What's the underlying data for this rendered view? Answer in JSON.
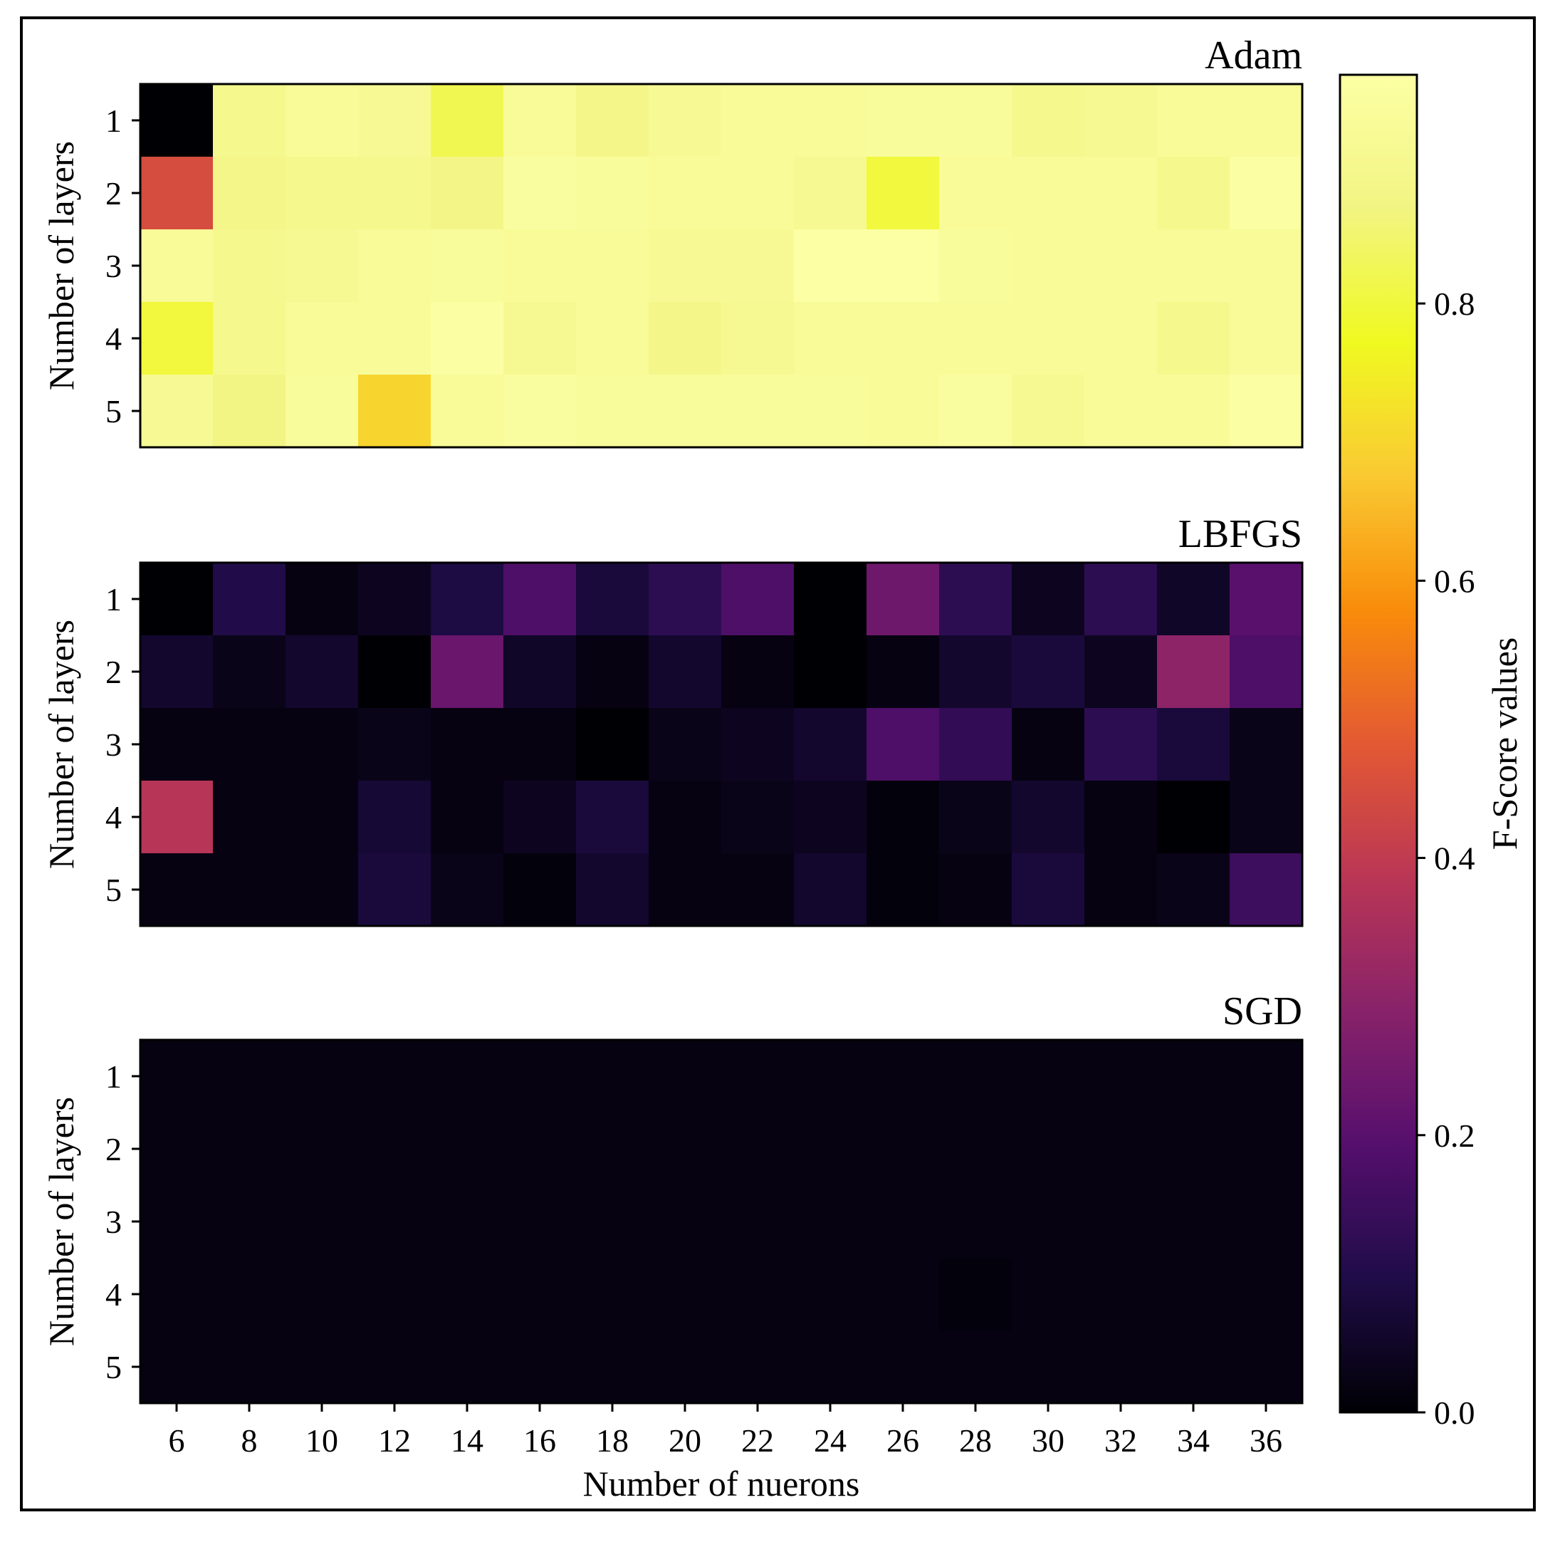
{
  "chart_data": {
    "type": "heatmap",
    "panels": [
      {
        "title": "Adam",
        "ylabel": "Number of layers",
        "rows": [
          "1",
          "2",
          "3",
          "4",
          "5"
        ],
        "values": [
          [
            0.0,
            0.9,
            0.93,
            0.92,
            0.82,
            0.93,
            0.89,
            0.92,
            0.93,
            0.93,
            0.94,
            0.94,
            0.9,
            0.91,
            0.93,
            0.93
          ],
          [
            0.45,
            0.89,
            0.9,
            0.9,
            0.88,
            0.95,
            0.94,
            0.93,
            0.93,
            0.91,
            0.8,
            0.93,
            0.93,
            0.93,
            0.9,
            0.96
          ],
          [
            0.93,
            0.9,
            0.91,
            0.93,
            0.94,
            0.93,
            0.93,
            0.92,
            0.92,
            0.97,
            0.97,
            0.94,
            0.93,
            0.93,
            0.93,
            0.93
          ],
          [
            0.8,
            0.9,
            0.93,
            0.93,
            0.96,
            0.91,
            0.93,
            0.89,
            0.91,
            0.93,
            0.93,
            0.93,
            0.93,
            0.93,
            0.9,
            0.93
          ],
          [
            0.92,
            0.87,
            0.94,
            0.7,
            0.93,
            0.95,
            0.94,
            0.94,
            0.94,
            0.94,
            0.93,
            0.95,
            0.91,
            0.93,
            0.93,
            0.96
          ]
        ]
      },
      {
        "title": "LBFGS",
        "ylabel": "Number of layers",
        "rows": [
          "1",
          "2",
          "3",
          "4",
          "5"
        ],
        "values": [
          [
            0.0,
            0.1,
            0.02,
            0.04,
            0.09,
            0.18,
            0.08,
            0.12,
            0.18,
            0.0,
            0.24,
            0.12,
            0.04,
            0.12,
            0.05,
            0.2
          ],
          [
            0.06,
            0.03,
            0.06,
            0.0,
            0.23,
            0.05,
            0.02,
            0.06,
            0.02,
            0.0,
            0.02,
            0.06,
            0.08,
            0.04,
            0.3,
            0.18
          ],
          [
            0.02,
            0.02,
            0.02,
            0.03,
            0.02,
            0.02,
            0.0,
            0.03,
            0.04,
            0.06,
            0.18,
            0.13,
            0.02,
            0.12,
            0.08,
            0.03
          ],
          [
            0.38,
            0.02,
            0.02,
            0.07,
            0.02,
            0.04,
            0.08,
            0.02,
            0.03,
            0.04,
            0.01,
            0.03,
            0.06,
            0.02,
            0.0,
            0.03
          ],
          [
            0.02,
            0.02,
            0.02,
            0.08,
            0.03,
            0.01,
            0.06,
            0.02,
            0.02,
            0.06,
            0.01,
            0.02,
            0.08,
            0.02,
            0.03,
            0.15
          ]
        ]
      },
      {
        "title": "SGD",
        "ylabel": "Number of layers",
        "rows": [
          "1",
          "2",
          "3",
          "4",
          "5"
        ],
        "values": [
          [
            0.02,
            0.02,
            0.02,
            0.02,
            0.02,
            0.02,
            0.02,
            0.02,
            0.02,
            0.02,
            0.02,
            0.02,
            0.02,
            0.02,
            0.02,
            0.02
          ],
          [
            0.02,
            0.02,
            0.02,
            0.02,
            0.02,
            0.02,
            0.02,
            0.02,
            0.02,
            0.02,
            0.02,
            0.02,
            0.02,
            0.02,
            0.02,
            0.02
          ],
          [
            0.02,
            0.02,
            0.02,
            0.02,
            0.02,
            0.02,
            0.02,
            0.02,
            0.02,
            0.02,
            0.02,
            0.02,
            0.02,
            0.02,
            0.02,
            0.02
          ],
          [
            0.02,
            0.02,
            0.02,
            0.02,
            0.02,
            0.02,
            0.02,
            0.02,
            0.02,
            0.02,
            0.02,
            0.01,
            0.02,
            0.02,
            0.02,
            0.02
          ],
          [
            0.02,
            0.02,
            0.02,
            0.02,
            0.02,
            0.02,
            0.02,
            0.02,
            0.02,
            0.02,
            0.02,
            0.02,
            0.02,
            0.02,
            0.02,
            0.02
          ]
        ]
      }
    ],
    "x_categories": [
      "6",
      "8",
      "10",
      "12",
      "14",
      "16",
      "18",
      "20",
      "22",
      "24",
      "26",
      "28",
      "30",
      "32",
      "34",
      "36"
    ],
    "xlabel": "Number of nuerons",
    "colorbar": {
      "label": "F-Score values",
      "colormap": "inferno",
      "range": [
        0.0,
        0.965
      ],
      "ticks": [
        {
          "value": 0.0,
          "label": "0.0"
        },
        {
          "value": 0.2,
          "label": "0.2"
        },
        {
          "value": 0.4,
          "label": "0.4"
        },
        {
          "value": 0.6,
          "label": "0.6"
        },
        {
          "value": 0.8,
          "label": "0.8"
        }
      ]
    },
    "grid": false
  }
}
